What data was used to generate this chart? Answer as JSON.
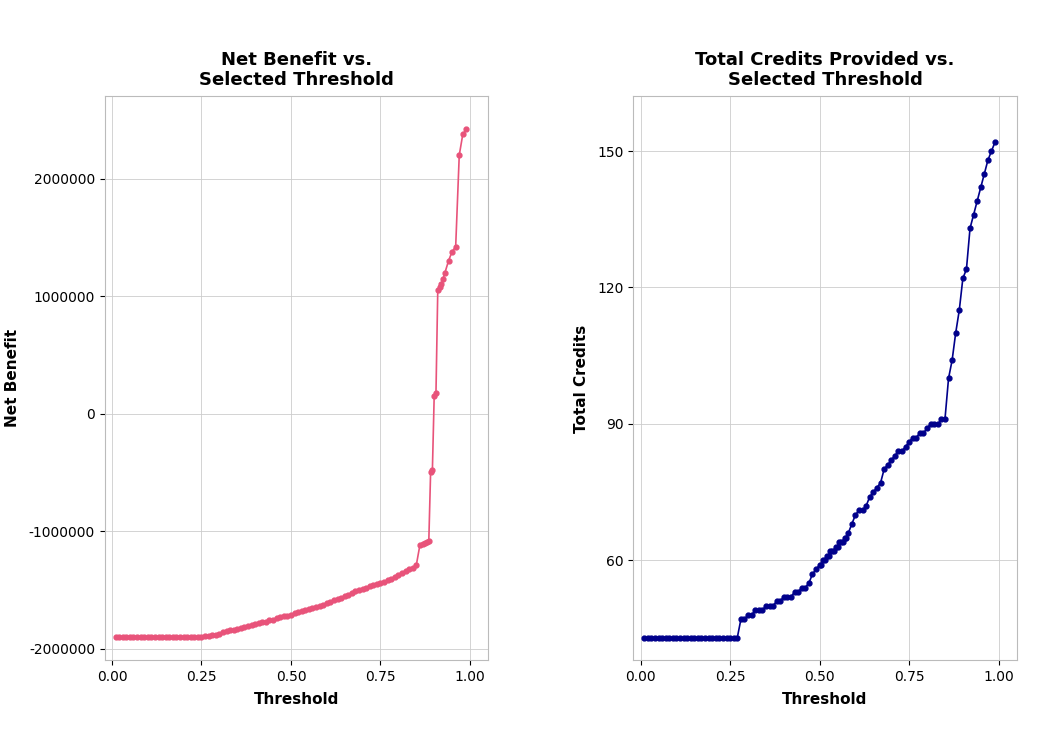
{
  "title1": "Net Benefit vs.\nSelected Threshold",
  "title2": "Total Credits Provided vs.\nSelected Threshold",
  "xlabel": "Threshold",
  "ylabel1": "Net Benefit",
  "ylabel2": "Total Credits",
  "line_color1": "#E8537A",
  "line_color2": "#00008B",
  "bg_color": "#FFFFFF",
  "panel_bg": "#FFFFFF",
  "grid_color": "#CCCCCC",
  "ylim1": [
    -2100000,
    2700000
  ],
  "ylim2": [
    38,
    162
  ],
  "xlim": [
    -0.02,
    1.05
  ],
  "yticks1": [
    -2000000,
    -1000000,
    0,
    1000000,
    2000000
  ],
  "yticks2": [
    60,
    90,
    120,
    150
  ],
  "xticks": [
    0.0,
    0.25,
    0.5,
    0.75,
    1.0
  ],
  "title_fontsize": 13,
  "axis_label_fontsize": 11,
  "tick_fontsize": 10,
  "marker_size": 3.5,
  "line_width": 1.2,
  "nb_thresh": [
    0.01,
    0.02,
    0.03,
    0.04,
    0.05,
    0.06,
    0.07,
    0.08,
    0.09,
    0.1,
    0.11,
    0.12,
    0.13,
    0.14,
    0.15,
    0.16,
    0.17,
    0.18,
    0.19,
    0.2,
    0.21,
    0.22,
    0.23,
    0.24,
    0.25,
    0.26,
    0.27,
    0.28,
    0.29,
    0.3,
    0.31,
    0.32,
    0.33,
    0.34,
    0.35,
    0.36,
    0.37,
    0.38,
    0.39,
    0.4,
    0.41,
    0.42,
    0.43,
    0.44,
    0.45,
    0.46,
    0.47,
    0.48,
    0.49,
    0.5,
    0.51,
    0.52,
    0.53,
    0.54,
    0.55,
    0.56,
    0.57,
    0.58,
    0.59,
    0.6,
    0.61,
    0.62,
    0.63,
    0.64,
    0.65,
    0.66,
    0.67,
    0.68,
    0.69,
    0.7,
    0.71,
    0.72,
    0.73,
    0.74,
    0.75,
    0.76,
    0.77,
    0.78,
    0.79,
    0.8,
    0.81,
    0.82,
    0.83,
    0.84,
    0.85,
    0.86,
    0.87,
    0.875,
    0.88,
    0.885,
    0.89,
    0.895,
    0.9,
    0.905,
    0.91,
    0.915,
    0.92,
    0.925,
    0.93,
    0.94,
    0.95,
    0.96,
    0.97,
    0.98,
    0.99
  ],
  "nb_vals": [
    -1900000,
    -1900000,
    -1900000,
    -1900000,
    -1900000,
    -1900000,
    -1900000,
    -1900000,
    -1900000,
    -1900000,
    -1900000,
    -1900000,
    -1900000,
    -1900000,
    -1900000,
    -1900000,
    -1900000,
    -1900000,
    -1900000,
    -1900000,
    -1900000,
    -1900000,
    -1900000,
    -1900000,
    -1900000,
    -1895000,
    -1890000,
    -1885000,
    -1880000,
    -1875000,
    -1860000,
    -1850000,
    -1845000,
    -1840000,
    -1835000,
    -1825000,
    -1820000,
    -1810000,
    -1800000,
    -1790000,
    -1780000,
    -1775000,
    -1770000,
    -1760000,
    -1755000,
    -1740000,
    -1730000,
    -1725000,
    -1720000,
    -1710000,
    -1700000,
    -1690000,
    -1680000,
    -1675000,
    -1665000,
    -1655000,
    -1645000,
    -1635000,
    -1625000,
    -1615000,
    -1600000,
    -1590000,
    -1580000,
    -1565000,
    -1555000,
    -1540000,
    -1530000,
    -1510000,
    -1500000,
    -1490000,
    -1480000,
    -1470000,
    -1460000,
    -1450000,
    -1440000,
    -1430000,
    -1420000,
    -1405000,
    -1390000,
    -1375000,
    -1355000,
    -1340000,
    -1325000,
    -1310000,
    -1290000,
    -1120000,
    -1110000,
    -1100000,
    -1090000,
    -1080000,
    -500000,
    -480000,
    150000,
    180000,
    1050000,
    1080000,
    1100000,
    1150000,
    1200000,
    1300000,
    1380000,
    1420000,
    2200000,
    2380000,
    2420000
  ],
  "cr_thresh": [
    0.01,
    0.02,
    0.03,
    0.04,
    0.05,
    0.06,
    0.07,
    0.08,
    0.09,
    0.1,
    0.11,
    0.12,
    0.13,
    0.14,
    0.15,
    0.16,
    0.17,
    0.18,
    0.19,
    0.2,
    0.21,
    0.22,
    0.23,
    0.24,
    0.25,
    0.26,
    0.27,
    0.28,
    0.29,
    0.3,
    0.31,
    0.32,
    0.33,
    0.34,
    0.35,
    0.36,
    0.37,
    0.38,
    0.39,
    0.4,
    0.41,
    0.42,
    0.43,
    0.44,
    0.45,
    0.46,
    0.47,
    0.48,
    0.49,
    0.5,
    0.505,
    0.51,
    0.515,
    0.52,
    0.525,
    0.53,
    0.535,
    0.54,
    0.545,
    0.55,
    0.555,
    0.56,
    0.565,
    0.57,
    0.575,
    0.58,
    0.59,
    0.6,
    0.61,
    0.62,
    0.63,
    0.64,
    0.65,
    0.66,
    0.67,
    0.68,
    0.69,
    0.7,
    0.71,
    0.72,
    0.73,
    0.74,
    0.75,
    0.76,
    0.77,
    0.78,
    0.79,
    0.8,
    0.81,
    0.82,
    0.83,
    0.84,
    0.85,
    0.86,
    0.87,
    0.88,
    0.89,
    0.9,
    0.91,
    0.92,
    0.93,
    0.94,
    0.95,
    0.96,
    0.97,
    0.98,
    0.99
  ],
  "cr_vals": [
    43,
    43,
    43,
    43,
    43,
    43,
    43,
    43,
    43,
    43,
    43,
    43,
    43,
    43,
    43,
    43,
    43,
    43,
    43,
    43,
    43,
    43,
    43,
    43,
    43,
    43,
    43,
    47,
    47,
    48,
    48,
    49,
    49,
    49,
    50,
    50,
    50,
    51,
    51,
    52,
    52,
    52,
    53,
    53,
    54,
    54,
    55,
    57,
    58,
    59,
    59,
    60,
    60,
    61,
    61,
    62,
    62,
    62,
    63,
    63,
    64,
    64,
    64,
    65,
    65,
    66,
    68,
    70,
    71,
    71,
    72,
    74,
    75,
    76,
    77,
    80,
    81,
    82,
    83,
    84,
    84,
    85,
    86,
    87,
    87,
    88,
    88,
    89,
    90,
    90,
    90,
    91,
    91,
    100,
    104,
    110,
    115,
    122,
    124,
    133,
    136,
    139,
    142,
    145,
    148,
    150,
    152
  ]
}
